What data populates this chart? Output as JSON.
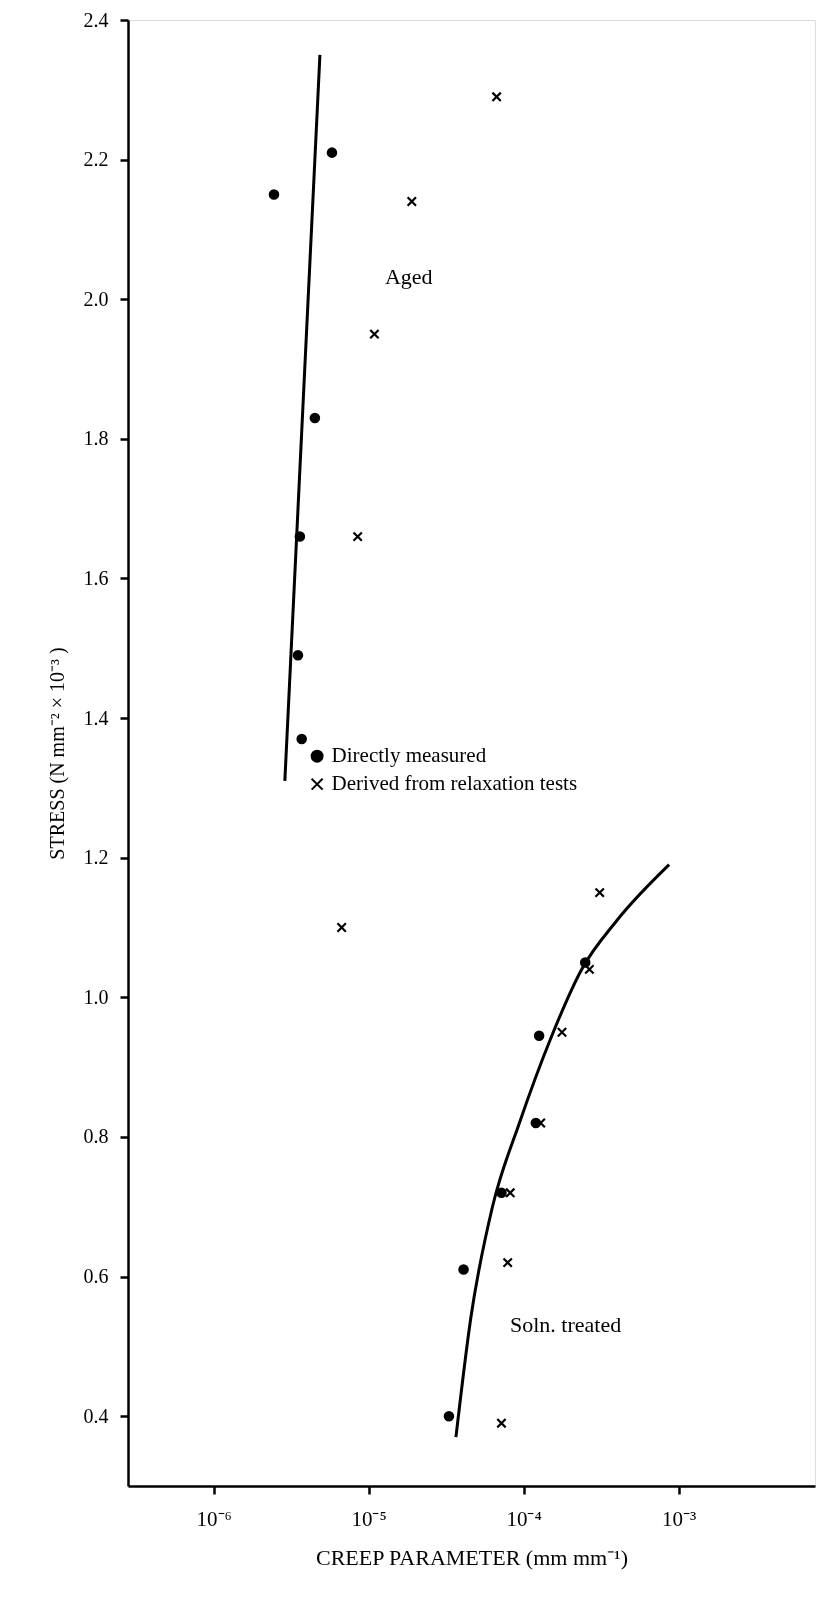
{
  "chart_data": {
    "type": "scatter",
    "xlabel": "CREEP PARAMETER (mm mm⁻¹)",
    "ylabel": "STRESS (N mm⁻² × 10⁻³ )",
    "log": "x",
    "grid": false,
    "legend": "center",
    "xlim": [
      2.8e-07,
      0.0076
    ],
    "xticks": [
      {
        "value": 1e-06,
        "label": "10⁻⁶"
      },
      {
        "value": 1e-05,
        "label": "10⁻⁵"
      },
      {
        "value": 0.0001,
        "label": "10⁻⁴"
      },
      {
        "value": 0.001,
        "label": "10⁻³"
      }
    ],
    "ylim": [
      0.3,
      2.4
    ],
    "yticks": [
      0.4,
      0.6,
      0.8,
      {
        "value": 1.0,
        "label": "1.0"
      },
      1.2,
      1.4,
      1.6,
      1.8,
      {
        "value": 2.0,
        "label": "2.0"
      },
      2.2,
      2.4
    ],
    "series": [
      {
        "name": "Directly measured",
        "marker": "circle",
        "color": "#000000",
        "x": [
          5.8e-06,
          2.45e-06,
          4.5e-06,
          3.6e-06,
          3.5e-06,
          3.7e-06,
          0.00025,
          0.000126,
          0.00012,
          7.2e-05,
          4.1e-05,
          3.3e-05
        ],
        "values": [
          2.21,
          2.15,
          1.83,
          1.66,
          1.49,
          1.37,
          1.05,
          0.945,
          0.82,
          0.72,
          0.61,
          0.4
        ]
      },
      {
        "name": "Derived from relaxation tests",
        "marker": "cross",
        "color": "#000000",
        "x": [
          6.7e-05,
          1.9e-05,
          1.09e-05,
          8.5e-06,
          6.7e-06,
          0.00031,
          0.000266,
          0.000177,
          0.000129,
          8.2e-05,
          7.9e-05,
          7.2e-05
        ],
        "values": [
          2.29,
          2.14,
          1.95,
          1.66,
          1.1,
          1.15,
          1.04,
          0.95,
          0.82,
          0.72,
          0.62,
          0.39
        ]
      },
      {
        "type": "line",
        "color": "#000000",
        "x": [
          4.85e-06,
          2.88e-06
        ],
        "values": [
          2.35,
          1.31
        ]
      },
      {
        "type": "line",
        "color": "#000000",
        "x": [
          3.66e-05,
          4.56e-05,
          6.3e-05,
          9.4e-05,
          0.000149,
          0.000237,
          0.0004,
          0.00087
        ],
        "values": [
          0.37,
          0.54,
          0.7,
          0.82,
          0.94,
          1.04,
          1.11,
          1.19
        ]
      }
    ],
    "annotations": [
      "Aged",
      "Soln. treated"
    ]
  }
}
